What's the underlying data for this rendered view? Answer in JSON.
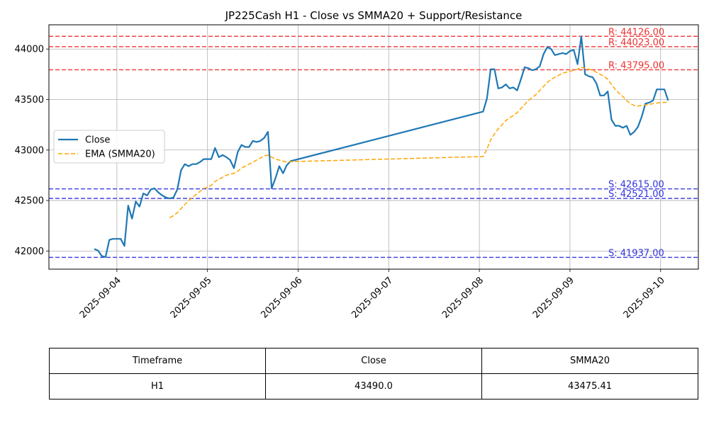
{
  "chart_data": {
    "type": "line",
    "title": "JP225Cash H1 - Close vs SMMA20 + Support/Resistance",
    "xlabel": "",
    "ylabel": "",
    "x_ticks": [
      "2025-09-04",
      "2025-09-05",
      "2025-09-06",
      "2025-09-07",
      "2025-09-08",
      "2025-09-09",
      "2025-09-10"
    ],
    "y_ticks": [
      42000,
      42500,
      43000,
      43500,
      44000
    ],
    "xlim": [
      "2025-09-03 06:00",
      "2025-09-10 10:00"
    ],
    "ylim": [
      41820,
      44240
    ],
    "grid": true,
    "legend_position": "center-left",
    "series": [
      {
        "name": "Close",
        "color": "#1f77b4",
        "style": "solid",
        "points": [
          [
            "2025-09-03 18:00",
            42020
          ],
          [
            "2025-09-03 19:00",
            42005
          ],
          [
            "2025-09-03 20:00",
            41950
          ],
          [
            "2025-09-03 21:00",
            41940
          ],
          [
            "2025-09-03 22:00",
            42110
          ],
          [
            "2025-09-03 23:00",
            42120
          ],
          [
            "2025-09-04 00:00",
            42120
          ],
          [
            "2025-09-04 01:00",
            42120
          ],
          [
            "2025-09-04 02:00",
            42050
          ],
          [
            "2025-09-04 03:00",
            42450
          ],
          [
            "2025-09-04 04:00",
            42320
          ],
          [
            "2025-09-04 05:00",
            42490
          ],
          [
            "2025-09-04 06:00",
            42440
          ],
          [
            "2025-09-04 07:00",
            42570
          ],
          [
            "2025-09-04 08:00",
            42550
          ],
          [
            "2025-09-04 09:00",
            42610
          ],
          [
            "2025-09-04 10:00",
            42620
          ],
          [
            "2025-09-04 11:00",
            42580
          ],
          [
            "2025-09-04 12:00",
            42550
          ],
          [
            "2025-09-04 13:00",
            42530
          ],
          [
            "2025-09-04 14:00",
            42520
          ],
          [
            "2025-09-04 15:00",
            42530
          ],
          [
            "2025-09-04 16:00",
            42610
          ],
          [
            "2025-09-04 17:00",
            42800
          ],
          [
            "2025-09-04 18:00",
            42860
          ],
          [
            "2025-09-04 19:00",
            42840
          ],
          [
            "2025-09-04 20:00",
            42860
          ],
          [
            "2025-09-04 21:00",
            42860
          ],
          [
            "2025-09-04 22:00",
            42880
          ],
          [
            "2025-09-04 23:00",
            42910
          ],
          [
            "2025-09-05 00:00",
            42910
          ],
          [
            "2025-09-05 01:00",
            42910
          ],
          [
            "2025-09-05 02:00",
            43020
          ],
          [
            "2025-09-05 03:00",
            42930
          ],
          [
            "2025-09-05 04:00",
            42950
          ],
          [
            "2025-09-05 05:00",
            42930
          ],
          [
            "2025-09-05 06:00",
            42900
          ],
          [
            "2025-09-05 07:00",
            42820
          ],
          [
            "2025-09-05 08:00",
            42980
          ],
          [
            "2025-09-05 09:00",
            43050
          ],
          [
            "2025-09-05 10:00",
            43030
          ],
          [
            "2025-09-05 11:00",
            43030
          ],
          [
            "2025-09-05 12:00",
            43090
          ],
          [
            "2025-09-05 13:00",
            43080
          ],
          [
            "2025-09-05 14:00",
            43090
          ],
          [
            "2025-09-05 15:00",
            43120
          ],
          [
            "2025-09-05 16:00",
            43180
          ],
          [
            "2025-09-05 17:00",
            42620
          ],
          [
            "2025-09-05 18:00",
            42720
          ],
          [
            "2025-09-05 19:00",
            42840
          ],
          [
            "2025-09-05 20:00",
            42770
          ],
          [
            "2025-09-05 21:00",
            42850
          ],
          [
            "2025-09-05 22:00",
            42890
          ],
          [
            "2025-09-08 01:00",
            43380
          ],
          [
            "2025-09-08 02:00",
            43510
          ],
          [
            "2025-09-08 03:00",
            43800
          ],
          [
            "2025-09-08 04:00",
            43800
          ],
          [
            "2025-09-08 05:00",
            43610
          ],
          [
            "2025-09-08 06:00",
            43620
          ],
          [
            "2025-09-08 07:00",
            43650
          ],
          [
            "2025-09-08 08:00",
            43610
          ],
          [
            "2025-09-08 09:00",
            43620
          ],
          [
            "2025-09-08 10:00",
            43590
          ],
          [
            "2025-09-08 11:00",
            43700
          ],
          [
            "2025-09-08 12:00",
            43820
          ],
          [
            "2025-09-08 13:00",
            43810
          ],
          [
            "2025-09-08 14:00",
            43790
          ],
          [
            "2025-09-08 15:00",
            43800
          ],
          [
            "2025-09-08 16:00",
            43830
          ],
          [
            "2025-09-08 17:00",
            43950
          ],
          [
            "2025-09-08 18:00",
            44020
          ],
          [
            "2025-09-08 19:00",
            44000
          ],
          [
            "2025-09-08 20:00",
            43940
          ],
          [
            "2025-09-08 21:00",
            43950
          ],
          [
            "2025-09-08 22:00",
            43960
          ],
          [
            "2025-09-08 23:00",
            43950
          ],
          [
            "2025-09-09 00:00",
            43980
          ],
          [
            "2025-09-09 01:00",
            43990
          ],
          [
            "2025-09-09 02:00",
            43850
          ],
          [
            "2025-09-09 03:00",
            44126
          ],
          [
            "2025-09-09 04:00",
            43750
          ],
          [
            "2025-09-09 05:00",
            43730
          ],
          [
            "2025-09-09 06:00",
            43720
          ],
          [
            "2025-09-09 07:00",
            43660
          ],
          [
            "2025-09-09 08:00",
            43540
          ],
          [
            "2025-09-09 09:00",
            43540
          ],
          [
            "2025-09-09 10:00",
            43580
          ],
          [
            "2025-09-09 11:00",
            43300
          ],
          [
            "2025-09-09 12:00",
            43240
          ],
          [
            "2025-09-09 13:00",
            43240
          ],
          [
            "2025-09-09 14:00",
            43220
          ],
          [
            "2025-09-09 15:00",
            43240
          ],
          [
            "2025-09-09 16:00",
            43150
          ],
          [
            "2025-09-09 17:00",
            43180
          ],
          [
            "2025-09-09 18:00",
            43230
          ],
          [
            "2025-09-09 19:00",
            43330
          ],
          [
            "2025-09-09 20:00",
            43460
          ],
          [
            "2025-09-09 21:00",
            43470
          ],
          [
            "2025-09-09 22:00",
            43490
          ],
          [
            "2025-09-09 23:00",
            43600
          ],
          [
            "2025-09-10 00:00",
            43600
          ],
          [
            "2025-09-10 01:00",
            43600
          ],
          [
            "2025-09-10 02:00",
            43490
          ]
        ]
      },
      {
        "name": "EMA (SMMA20)",
        "color": "#ffa500",
        "style": "dashed",
        "points": [
          [
            "2025-09-04 14:00",
            42330
          ],
          [
            "2025-09-04 15:00",
            42350
          ],
          [
            "2025-09-04 16:00",
            42380
          ],
          [
            "2025-09-04 17:00",
            42420
          ],
          [
            "2025-09-04 18:00",
            42460
          ],
          [
            "2025-09-04 19:00",
            42500
          ],
          [
            "2025-09-04 20:00",
            42530
          ],
          [
            "2025-09-04 21:00",
            42560
          ],
          [
            "2025-09-04 22:00",
            42590
          ],
          [
            "2025-09-04 23:00",
            42620
          ],
          [
            "2025-09-05 00:00",
            42630
          ],
          [
            "2025-09-05 01:00",
            42650
          ],
          [
            "2025-09-05 02:00",
            42690
          ],
          [
            "2025-09-05 03:00",
            42710
          ],
          [
            "2025-09-05 04:00",
            42730
          ],
          [
            "2025-09-05 05:00",
            42750
          ],
          [
            "2025-09-05 06:00",
            42760
          ],
          [
            "2025-09-05 07:00",
            42770
          ],
          [
            "2025-09-05 08:00",
            42790
          ],
          [
            "2025-09-05 09:00",
            42820
          ],
          [
            "2025-09-05 10:00",
            42840
          ],
          [
            "2025-09-05 11:00",
            42860
          ],
          [
            "2025-09-05 12:00",
            42880
          ],
          [
            "2025-09-05 13:00",
            42900
          ],
          [
            "2025-09-05 14:00",
            42920
          ],
          [
            "2025-09-05 15:00",
            42940
          ],
          [
            "2025-09-05 16:00",
            42950
          ],
          [
            "2025-09-05 17:00",
            42930
          ],
          [
            "2025-09-05 18:00",
            42910
          ],
          [
            "2025-09-05 19:00",
            42900
          ],
          [
            "2025-09-05 20:00",
            42890
          ],
          [
            "2025-09-05 21:00",
            42880
          ],
          [
            "2025-09-05 22:00",
            42885
          ],
          [
            "2025-09-08 01:00",
            42935
          ],
          [
            "2025-09-08 02:00",
            43010
          ],
          [
            "2025-09-08 03:00",
            43100
          ],
          [
            "2025-09-08 04:00",
            43160
          ],
          [
            "2025-09-08 05:00",
            43210
          ],
          [
            "2025-09-08 06:00",
            43250
          ],
          [
            "2025-09-08 07:00",
            43290
          ],
          [
            "2025-09-08 08:00",
            43320
          ],
          [
            "2025-09-08 09:00",
            43340
          ],
          [
            "2025-09-08 10:00",
            43370
          ],
          [
            "2025-09-08 11:00",
            43410
          ],
          [
            "2025-09-08 12:00",
            43450
          ],
          [
            "2025-09-08 13:00",
            43490
          ],
          [
            "2025-09-08 14:00",
            43520
          ],
          [
            "2025-09-08 15:00",
            43550
          ],
          [
            "2025-09-08 16:00",
            43590
          ],
          [
            "2025-09-08 17:00",
            43630
          ],
          [
            "2025-09-08 18:00",
            43670
          ],
          [
            "2025-09-08 19:00",
            43700
          ],
          [
            "2025-09-08 20:00",
            43720
          ],
          [
            "2025-09-08 21:00",
            43740
          ],
          [
            "2025-09-08 22:00",
            43760
          ],
          [
            "2025-09-08 23:00",
            43770
          ],
          [
            "2025-09-09 00:00",
            43780
          ],
          [
            "2025-09-09 01:00",
            43790
          ],
          [
            "2025-09-09 02:00",
            43800
          ],
          [
            "2025-09-09 03:00",
            43820
          ],
          [
            "2025-09-09 04:00",
            43810
          ],
          [
            "2025-09-09 05:00",
            43800
          ],
          [
            "2025-09-09 06:00",
            43790
          ],
          [
            "2025-09-09 07:00",
            43770
          ],
          [
            "2025-09-09 08:00",
            43750
          ],
          [
            "2025-09-09 09:00",
            43730
          ],
          [
            "2025-09-09 10:00",
            43700
          ],
          [
            "2025-09-09 11:00",
            43650
          ],
          [
            "2025-09-09 12:00",
            43600
          ],
          [
            "2025-09-09 13:00",
            43560
          ],
          [
            "2025-09-09 14:00",
            43530
          ],
          [
            "2025-09-09 15:00",
            43490
          ],
          [
            "2025-09-09 16:00",
            43460
          ],
          [
            "2025-09-09 17:00",
            43440
          ],
          [
            "2025-09-09 18:00",
            43435
          ],
          [
            "2025-09-09 19:00",
            43440
          ],
          [
            "2025-09-09 20:00",
            43445
          ],
          [
            "2025-09-09 21:00",
            43450
          ],
          [
            "2025-09-09 22:00",
            43460
          ],
          [
            "2025-09-09 23:00",
            43465
          ],
          [
            "2025-09-10 00:00",
            43470
          ],
          [
            "2025-09-10 01:00",
            43472
          ],
          [
            "2025-09-10 02:00",
            43475
          ]
        ]
      }
    ],
    "levels": [
      {
        "kind": "resistance",
        "value": 44126,
        "label": "R: 44126.00",
        "color": "#ee3333"
      },
      {
        "kind": "resistance",
        "value": 44023,
        "label": "R: 44023.00",
        "color": "#ee3333"
      },
      {
        "kind": "resistance",
        "value": 43795,
        "label": "R: 43795.00",
        "color": "#ee3333"
      },
      {
        "kind": "support",
        "value": 42615,
        "label": "S: 42615.00",
        "color": "#3333dd"
      },
      {
        "kind": "support",
        "value": 42521,
        "label": "S: 42521.00",
        "color": "#3333dd"
      },
      {
        "kind": "support",
        "value": 41937,
        "label": "S: 41937.00",
        "color": "#3333dd"
      }
    ]
  },
  "summary_table": {
    "headers": [
      "Timeframe",
      "Close",
      "SMMA20"
    ],
    "rows": [
      [
        "H1",
        "43490.0",
        "43475.41"
      ]
    ]
  }
}
